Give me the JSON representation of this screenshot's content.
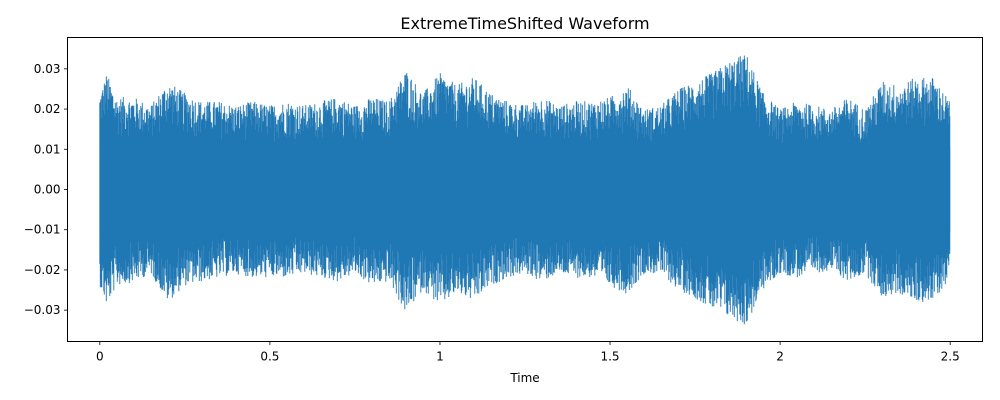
{
  "chart_data": {
    "type": "area",
    "title": "ExtremeTimeShifted Waveform",
    "xlabel": "Time",
    "ylabel": "",
    "xlim": [
      -0.095,
      2.595
    ],
    "ylim": [
      -0.0378,
      0.0378
    ],
    "xticks": [
      0,
      0.5,
      1,
      1.5,
      2,
      2.5
    ],
    "xtick_labels": [
      "0",
      "0.5",
      "1",
      "1.5",
      "2",
      "2.5"
    ],
    "yticks": [
      -0.03,
      -0.02,
      -0.01,
      0.0,
      0.01,
      0.02,
      0.03
    ],
    "ytick_labels": [
      "−0.03",
      "−0.02",
      "−0.01",
      "0.00",
      "0.01",
      "0.02",
      "0.03"
    ],
    "grid": false,
    "series": [
      {
        "color": "#1f77b4",
        "duration": 2.5,
        "x": [
          0,
          0.02,
          0.05,
          0.1,
          0.15,
          0.2,
          0.25,
          0.3,
          0.35,
          0.4,
          0.45,
          0.5,
          0.55,
          0.6,
          0.65,
          0.7,
          0.75,
          0.8,
          0.85,
          0.9,
          0.95,
          1.0,
          1.05,
          1.1,
          1.15,
          1.2,
          1.25,
          1.3,
          1.35,
          1.4,
          1.45,
          1.5,
          1.55,
          1.6,
          1.65,
          1.7,
          1.75,
          1.8,
          1.85,
          1.9,
          1.95,
          2.0,
          2.05,
          2.1,
          2.15,
          2.2,
          2.25,
          2.3,
          2.35,
          2.4,
          2.45,
          2.5
        ],
        "upper_envelope": [
          0.024,
          0.029,
          0.023,
          0.023,
          0.021,
          0.027,
          0.024,
          0.022,
          0.022,
          0.021,
          0.022,
          0.021,
          0.022,
          0.021,
          0.022,
          0.023,
          0.021,
          0.023,
          0.022,
          0.03,
          0.024,
          0.029,
          0.026,
          0.028,
          0.024,
          0.022,
          0.021,
          0.023,
          0.021,
          0.022,
          0.022,
          0.023,
          0.026,
          0.02,
          0.021,
          0.025,
          0.027,
          0.029,
          0.032,
          0.034,
          0.024,
          0.02,
          0.022,
          0.021,
          0.02,
          0.023,
          0.02,
          0.027,
          0.026,
          0.028,
          0.028,
          0.022
        ],
        "lower_envelope": [
          -0.024,
          -0.029,
          -0.024,
          -0.023,
          -0.021,
          -0.028,
          -0.024,
          -0.023,
          -0.022,
          -0.021,
          -0.022,
          -0.022,
          -0.022,
          -0.021,
          -0.022,
          -0.023,
          -0.021,
          -0.024,
          -0.023,
          -0.031,
          -0.025,
          -0.029,
          -0.026,
          -0.028,
          -0.024,
          -0.022,
          -0.021,
          -0.023,
          -0.021,
          -0.022,
          -0.022,
          -0.024,
          -0.026,
          -0.021,
          -0.021,
          -0.025,
          -0.027,
          -0.03,
          -0.032,
          -0.034,
          -0.025,
          -0.021,
          -0.022,
          -0.021,
          -0.02,
          -0.023,
          -0.021,
          -0.027,
          -0.026,
          -0.028,
          -0.028,
          -0.022
        ]
      }
    ]
  }
}
